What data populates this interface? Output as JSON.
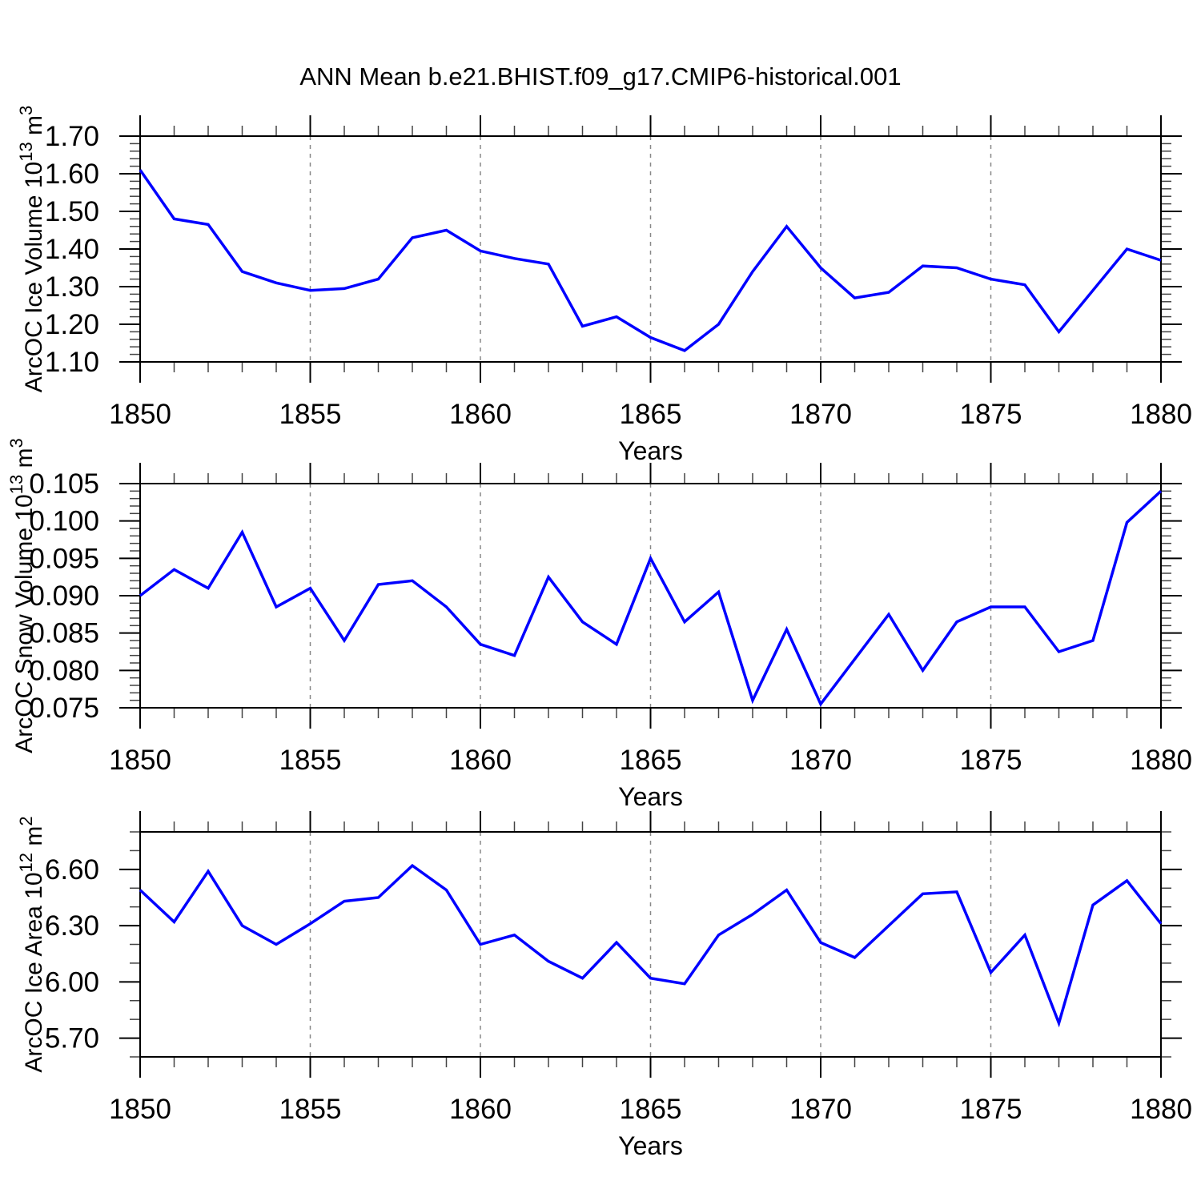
{
  "title": "ANN Mean b.e21.BHIST.f09_g17.CMIP6-historical.001",
  "style": {
    "line_color": "#0000ff",
    "axis_color": "#000000",
    "minor_tick_color": "#444444",
    "grid_color": "#888888",
    "text_color": "#000000",
    "background": "#ffffff"
  },
  "chart_data": [
    {
      "type": "line",
      "name": "arcoc-ice-volume",
      "ylabel": "ArcOC Ice Volume 10^13 m^3",
      "ylabel_parts": [
        {
          "t": "ArcOC Ice Volume 10"
        },
        {
          "sup": "13"
        },
        {
          "t": " m"
        },
        {
          "sup": "3"
        }
      ],
      "xlabel": "Years",
      "x": [
        1850,
        1851,
        1852,
        1853,
        1854,
        1855,
        1856,
        1857,
        1858,
        1859,
        1860,
        1861,
        1862,
        1863,
        1864,
        1865,
        1866,
        1867,
        1868,
        1869,
        1870,
        1871,
        1872,
        1873,
        1874,
        1875,
        1876,
        1877,
        1878,
        1879,
        1880
      ],
      "values": [
        1.61,
        1.48,
        1.465,
        1.34,
        1.31,
        1.29,
        1.295,
        1.32,
        1.43,
        1.45,
        1.395,
        1.375,
        1.36,
        1.195,
        1.22,
        1.165,
        1.13,
        1.2,
        1.34,
        1.46,
        1.35,
        1.27,
        1.285,
        1.355,
        1.35,
        1.32,
        1.305,
        1.18,
        1.29,
        1.4,
        1.37
      ],
      "ylim": [
        1.1,
        1.7
      ],
      "yticks": [
        1.1,
        1.2,
        1.3,
        1.4,
        1.5,
        1.6,
        1.7
      ],
      "ytick_labels": [
        "1.10",
        "1.20",
        "1.30",
        "1.40",
        "1.50",
        "1.60",
        "1.70"
      ],
      "yminor_step": 0.02,
      "xlim": [
        1850,
        1880
      ],
      "xticks": [
        1850,
        1855,
        1860,
        1865,
        1870,
        1875,
        1880
      ],
      "xtick_labels": [
        "1850",
        "1855",
        "1860",
        "1865",
        "1870",
        "1875",
        "1880"
      ],
      "xminor_step": 1,
      "grid_x": [
        1855,
        1860,
        1865,
        1870,
        1875
      ],
      "grid": "vertical-dashed",
      "legend": "none"
    },
    {
      "type": "line",
      "name": "arcoc-snow-volume",
      "ylabel": "ArcOC Snow Volume 10^13 m^3",
      "ylabel_parts": [
        {
          "t": "ArcOC Snow Volume 10"
        },
        {
          "sup": "13"
        },
        {
          "t": " m"
        },
        {
          "sup": "3"
        }
      ],
      "xlabel": "Years",
      "x": [
        1850,
        1851,
        1852,
        1853,
        1854,
        1855,
        1856,
        1857,
        1858,
        1859,
        1860,
        1861,
        1862,
        1863,
        1864,
        1865,
        1866,
        1867,
        1868,
        1869,
        1870,
        1871,
        1872,
        1873,
        1874,
        1875,
        1876,
        1877,
        1878,
        1879,
        1880
      ],
      "values": [
        0.09,
        0.0935,
        0.091,
        0.0985,
        0.0885,
        0.091,
        0.084,
        0.0915,
        0.092,
        0.0885,
        0.0835,
        0.082,
        0.0925,
        0.0865,
        0.0835,
        0.095,
        0.0865,
        0.0905,
        0.076,
        0.0855,
        0.0755,
        0.0815,
        0.0875,
        0.08,
        0.0865,
        0.0885,
        0.0885,
        0.0825,
        0.084,
        0.0998,
        0.104
      ],
      "ylim": [
        0.075,
        0.105
      ],
      "yticks": [
        0.075,
        0.08,
        0.085,
        0.09,
        0.095,
        0.1,
        0.105
      ],
      "ytick_labels": [
        "0.075",
        "0.080",
        "0.085",
        "0.090",
        "0.095",
        "0.100",
        "0.105"
      ],
      "yminor_step": 0.001,
      "xlim": [
        1850,
        1880
      ],
      "xticks": [
        1850,
        1855,
        1860,
        1865,
        1870,
        1875,
        1880
      ],
      "xtick_labels": [
        "1850",
        "1855",
        "1860",
        "1865",
        "1870",
        "1875",
        "1880"
      ],
      "xminor_step": 1,
      "grid_x": [
        1855,
        1860,
        1865,
        1870,
        1875
      ],
      "grid": "vertical-dashed",
      "legend": "none"
    },
    {
      "type": "line",
      "name": "arcoc-ice-area",
      "ylabel": "ArcOC Ice Area 10^12 m^2",
      "ylabel_parts": [
        {
          "t": "ArcOC Ice Area 10"
        },
        {
          "sup": "12"
        },
        {
          "t": " m"
        },
        {
          "sup": "2"
        }
      ],
      "xlabel": "Years",
      "x": [
        1850,
        1851,
        1852,
        1853,
        1854,
        1855,
        1856,
        1857,
        1858,
        1859,
        1860,
        1861,
        1862,
        1863,
        1864,
        1865,
        1866,
        1867,
        1868,
        1869,
        1870,
        1871,
        1872,
        1873,
        1874,
        1875,
        1876,
        1877,
        1878,
        1879,
        1880
      ],
      "values": [
        6.49,
        6.32,
        6.59,
        6.3,
        6.2,
        6.31,
        6.43,
        6.45,
        6.62,
        6.49,
        6.2,
        6.25,
        6.11,
        6.02,
        6.21,
        6.02,
        5.99,
        6.25,
        6.36,
        6.49,
        6.21,
        6.13,
        6.3,
        6.47,
        6.48,
        6.05,
        6.25,
        5.78,
        6.41,
        6.54,
        6.31
      ],
      "ylim": [
        5.6,
        6.8
      ],
      "yticks": [
        5.7,
        6.0,
        6.3,
        6.6
      ],
      "ytick_labels": [
        "5.70",
        "6.00",
        "6.30",
        "6.60"
      ],
      "yminor_step": 0.1,
      "xlim": [
        1850,
        1880
      ],
      "xticks": [
        1850,
        1855,
        1860,
        1865,
        1870,
        1875,
        1880
      ],
      "xtick_labels": [
        "1850",
        "1855",
        "1860",
        "1865",
        "1870",
        "1875",
        "1880"
      ],
      "xminor_step": 1,
      "grid_x": [
        1855,
        1860,
        1865,
        1870,
        1875
      ],
      "grid": "vertical-dashed",
      "legend": "none"
    }
  ]
}
